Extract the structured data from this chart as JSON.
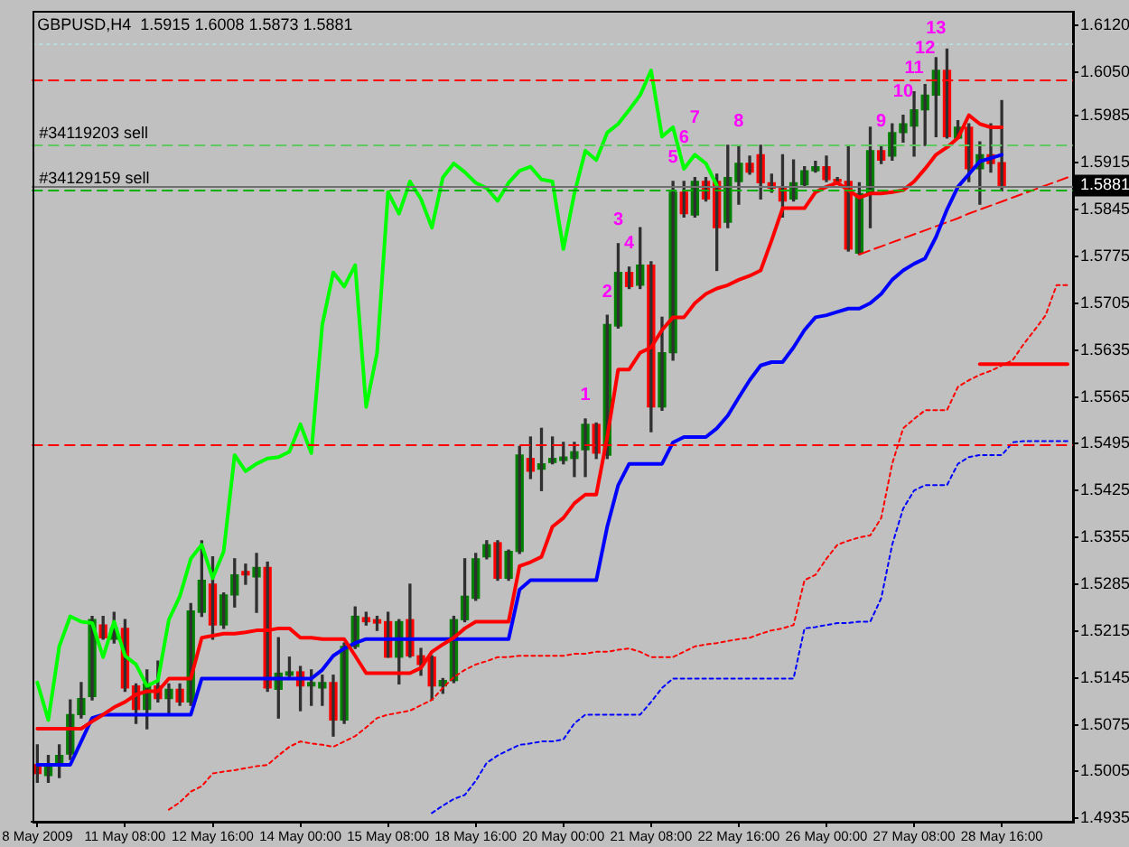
{
  "chart_data": {
    "type": "candlestick",
    "title": "GBPUSD,H4  1.5915 1.6008 1.5873 1.5881",
    "categories": [
      "8 May 2009",
      null,
      null,
      null,
      null,
      null,
      null,
      null,
      "11 May 08:00",
      null,
      null,
      null,
      null,
      null,
      null,
      null,
      "12 May 16:00",
      null,
      null,
      null,
      null,
      null,
      null,
      null,
      "14 May 00:00",
      null,
      null,
      null,
      null,
      null,
      null,
      null,
      "15 May 08:00",
      null,
      null,
      null,
      null,
      null,
      null,
      null,
      "18 May 16:00",
      null,
      null,
      null,
      null,
      null,
      null,
      null,
      "20 May 00:00",
      null,
      null,
      null,
      null,
      null,
      null,
      null,
      "21 May 08:00",
      null,
      null,
      null,
      null,
      null,
      null,
      null,
      "22 May 16:00",
      null,
      null,
      null,
      null,
      null,
      null,
      null,
      "26 May 00:00",
      null,
      null,
      null,
      null,
      null,
      null,
      null,
      "27 May 08:00",
      null,
      null,
      null,
      null,
      null,
      null,
      null,
      "28 May 16:00",
      null,
      null,
      null,
      null,
      null,
      null
    ],
    "ohlc": [
      [
        1.5015,
        1.5045,
        1.4989,
        1.5002
      ],
      [
        1.4999,
        1.5029,
        1.4989,
        1.5015
      ],
      [
        1.5015,
        1.5045,
        1.4996,
        1.5029
      ],
      [
        1.5031,
        1.5112,
        1.5023,
        1.509
      ],
      [
        1.509,
        1.5138,
        1.5085,
        1.5114
      ],
      [
        1.5117,
        1.5237,
        1.5112,
        1.5232
      ],
      [
        1.5224,
        1.5237,
        1.5203,
        1.5205
      ],
      [
        1.5203,
        1.5243,
        1.5197,
        1.5219
      ],
      [
        1.5219,
        1.5232,
        1.5125,
        1.513
      ],
      [
        1.5133,
        1.5136,
        1.5077,
        1.5098
      ],
      [
        1.5098,
        1.5157,
        1.5069,
        1.5136
      ],
      [
        1.5133,
        1.517,
        1.5109,
        1.5114
      ],
      [
        1.5114,
        1.5136,
        1.509,
        1.5128
      ],
      [
        1.5128,
        1.5136,
        1.5104,
        1.5109
      ],
      [
        1.5109,
        1.5256,
        1.5104,
        1.5245
      ],
      [
        1.5243,
        1.535,
        1.5237,
        1.5291
      ],
      [
        1.5285,
        1.5326,
        1.5203,
        1.5224
      ],
      [
        1.5224,
        1.5272,
        1.5219,
        1.5269
      ],
      [
        1.5269,
        1.5323,
        1.5251,
        1.5299
      ],
      [
        1.5304,
        1.5315,
        1.5285,
        1.5299
      ],
      [
        1.5296,
        1.5331,
        1.5243,
        1.531
      ],
      [
        1.531,
        1.5318,
        1.5125,
        1.513
      ],
      [
        1.5128,
        1.5205,
        1.5085,
        1.5152
      ],
      [
        1.5149,
        1.5176,
        1.5144,
        1.5154
      ],
      [
        1.5154,
        1.5162,
        1.5096,
        1.5133
      ],
      [
        1.5133,
        1.5157,
        1.5104,
        1.5138
      ],
      [
        1.513,
        1.5149,
        1.5104,
        1.5138
      ],
      [
        1.5138,
        1.5149,
        1.5058,
        1.5082
      ],
      [
        1.5082,
        1.5197,
        1.5077,
        1.5192
      ],
      [
        1.5192,
        1.5251,
        1.5189,
        1.5237
      ],
      [
        1.5235,
        1.5243,
        1.5224,
        1.5229
      ],
      [
        1.5232,
        1.5237,
        1.5216,
        1.5227
      ],
      [
        1.5229,
        1.5243,
        1.5176,
        1.5176
      ],
      [
        1.5176,
        1.5232,
        1.5136,
        1.5229
      ],
      [
        1.5232,
        1.5285,
        1.5176,
        1.5178
      ],
      [
        1.5178,
        1.5189,
        1.5149,
        1.5165
      ],
      [
        1.5176,
        1.5178,
        1.5112,
        1.5133
      ],
      [
        1.5133,
        1.5144,
        1.5122,
        1.5141
      ],
      [
        1.5141,
        1.5237,
        1.5138,
        1.5232
      ],
      [
        1.5232,
        1.5323,
        1.5229,
        1.5267
      ],
      [
        1.5264,
        1.5331,
        1.5261,
        1.5323
      ],
      [
        1.5326,
        1.535,
        1.5323,
        1.5344
      ],
      [
        1.5347,
        1.535,
        1.5291,
        1.5294
      ],
      [
        1.5294,
        1.5336,
        1.5291,
        1.5334
      ],
      [
        1.5334,
        1.5491,
        1.5331,
        1.5478
      ],
      [
        1.5473,
        1.5505,
        1.5443,
        1.5454
      ],
      [
        1.5457,
        1.5518,
        1.5425,
        1.5465
      ],
      [
        1.5467,
        1.5505,
        1.5465,
        1.5473
      ],
      [
        1.547,
        1.5497,
        1.5465,
        1.5475
      ],
      [
        1.5473,
        1.5497,
        1.5446,
        1.5483
      ],
      [
        1.5486,
        1.5532,
        1.5446,
        1.5524
      ],
      [
        1.5524,
        1.5526,
        1.5473,
        1.5481
      ],
      [
        1.5478,
        1.5687,
        1.5473,
        1.5673
      ],
      [
        1.5671,
        1.5794,
        1.5668,
        1.5751
      ],
      [
        1.5751,
        1.5759,
        1.5727,
        1.573
      ],
      [
        1.5732,
        1.5818,
        1.5727,
        1.5762
      ],
      [
        1.5762,
        1.5767,
        1.5513,
        1.555
      ],
      [
        1.555,
        1.5684,
        1.5545,
        1.5631
      ],
      [
        1.5631,
        1.5887,
        1.562,
        1.5871
      ],
      [
        1.5871,
        1.5887,
        1.5834,
        1.5839
      ],
      [
        1.5837,
        1.5893,
        1.5834,
        1.5887
      ],
      [
        1.5887,
        1.5893,
        1.5858,
        1.5861
      ],
      [
        1.5887,
        1.5898,
        1.5754,
        1.5818
      ],
      [
        1.5826,
        1.5941,
        1.5818,
        1.5893
      ],
      [
        1.5887,
        1.5941,
        1.5853,
        1.5914
      ],
      [
        1.5914,
        1.5925,
        1.5898,
        1.5901
      ],
      [
        1.5927,
        1.5941,
        1.5861,
        1.5885
      ],
      [
        1.5885,
        1.5898,
        1.5871,
        1.5877
      ],
      [
        1.5879,
        1.5927,
        1.5834,
        1.5858
      ],
      [
        1.5861,
        1.5919,
        1.5858,
        1.5885
      ],
      [
        1.5882,
        1.5909,
        1.5879,
        1.5903
      ],
      [
        1.5903,
        1.5917,
        1.5901,
        1.5909
      ],
      [
        1.5909,
        1.5925,
        1.5887,
        1.589
      ],
      [
        1.589,
        1.5893,
        1.5885,
        1.5887
      ],
      [
        1.5887,
        1.5941,
        1.5783,
        1.5786
      ],
      [
        1.578,
        1.5885,
        1.5778,
        1.5869
      ],
      [
        1.5869,
        1.5968,
        1.5818,
        1.5933
      ],
      [
        1.5933,
        1.5941,
        1.5914,
        1.5919
      ],
      [
        1.5925,
        1.5973,
        1.5919,
        1.596
      ],
      [
        1.596,
        1.5986,
        1.5946,
        1.5973
      ],
      [
        1.597,
        1.6021,
        1.5925,
        1.5994
      ],
      [
        1.5994,
        1.6032,
        1.5941,
        1.6016
      ],
      [
        1.6016,
        1.6072,
        1.5954,
        1.6053
      ],
      [
        1.6053,
        1.6085,
        1.5952,
        1.5954
      ],
      [
        1.5952,
        1.5978,
        1.5952,
        1.5968
      ],
      [
        1.5968,
        1.5973,
        1.5887,
        1.5906
      ],
      [
        1.5906,
        1.5946,
        1.5853,
        1.5927
      ],
      [
        1.5927,
        1.5973,
        1.5901,
        1.5914
      ],
      [
        1.5915,
        1.6008,
        1.5873,
        1.5881
      ],
      null,
      null,
      null,
      null,
      null,
      null
    ],
    "colors": [
      "#ff0000",
      "#008000",
      "#008000",
      "#008000",
      "#008000",
      "#008000",
      "#ff0000",
      "#008000",
      "#ff0000",
      "#ff0000",
      "#008000",
      "#ff0000",
      "#008000",
      "#ff0000",
      "#008000",
      "#008000",
      "#ff0000",
      "#008000",
      "#008000",
      "#ff0000",
      "#008000",
      "#ff0000",
      "#008000",
      "#008000",
      "#ff0000",
      "#008000",
      "#008000",
      "#ff0000",
      "#008000",
      "#008000",
      "#ff0000",
      "#ff0000",
      "#ff0000",
      "#008000",
      "#ff0000",
      "#ff0000",
      "#ff0000",
      "#008000",
      "#008000",
      "#008000",
      "#008000",
      "#008000",
      "#ff0000",
      "#008000",
      "#008000",
      "#ff0000",
      "#008000",
      "#008000",
      "#008000",
      "#008000",
      "#008000",
      "#ff0000",
      "#008000",
      "#008000",
      "#ff0000",
      "#008000",
      "#ff0000",
      "#008000",
      "#008000",
      "#ff0000",
      "#008000",
      "#ff0000",
      "#ff0000",
      "#008000",
      "#008000",
      "#ff0000",
      "#ff0000",
      "#ff0000",
      "#ff0000",
      "#008000",
      "#008000",
      "#008000",
      "#ff0000",
      "#ff0000",
      "#ff0000",
      "#008000",
      "#008000",
      "#ff0000",
      "#008000",
      "#008000",
      "#008000",
      "#008000",
      "#008000",
      "#ff0000",
      "#008000",
      "#ff0000",
      "#008000",
      "#ff0000",
      "#ff0000",
      null,
      null,
      null,
      null,
      null,
      null
    ],
    "value_labels": [
      null,
      null,
      null,
      null,
      null,
      null,
      null,
      null,
      null,
      null,
      null,
      null,
      null,
      null,
      null,
      null,
      null,
      null,
      null,
      null,
      null,
      null,
      null,
      null,
      null,
      null,
      null,
      null,
      null,
      null,
      null,
      null,
      null,
      null,
      null,
      null,
      null,
      null,
      null,
      null,
      null,
      null,
      null,
      null,
      null,
      null,
      null,
      null,
      null,
      null,
      "1",
      null,
      "2",
      "3",
      "4",
      null,
      null,
      null,
      "5",
      "6",
      "7",
      null,
      null,
      null,
      "8",
      null,
      null,
      null,
      null,
      null,
      null,
      null,
      null,
      null,
      null,
      null,
      null,
      "9",
      null,
      "10",
      "11",
      "12",
      "13",
      null,
      null,
      null,
      null,
      null,
      null,
      null,
      null,
      null,
      null,
      null,
      null
    ],
    "series": [
      {
        "type": "line",
        "color": "#ff0000",
        "values": [
          1.5069,
          1.5069,
          1.5069,
          1.5069,
          1.5069,
          1.508,
          1.509,
          1.5101,
          1.5109,
          1.512,
          1.5125,
          1.5125,
          1.5144,
          1.5144,
          1.5144,
          1.5205,
          1.5208,
          1.5211,
          1.5211,
          1.5213,
          1.5216,
          1.5216,
          1.5219,
          1.5219,
          1.5205,
          1.5205,
          1.5203,
          1.5203,
          1.5203,
          1.5178,
          1.5152,
          1.5152,
          1.5152,
          1.5152,
          1.5152,
          1.516,
          1.5184,
          1.5195,
          1.5205,
          1.5219,
          1.5229,
          1.5229,
          1.5229,
          1.5229,
          1.5312,
          1.5318,
          1.5326,
          1.5371,
          1.5384,
          1.5406,
          1.5419,
          1.5419,
          1.5505,
          1.5606,
          1.5606,
          1.5631,
          1.5639,
          1.5665,
          1.5684,
          1.5684,
          1.5705,
          1.5719,
          1.5727,
          1.5732,
          1.574,
          1.5746,
          1.5754,
          1.5799,
          1.5847,
          1.5847,
          1.5847,
          1.5871,
          1.5879,
          1.5885,
          1.5874,
          1.5863,
          1.5869,
          1.5869,
          1.5871,
          1.5874,
          1.5887,
          1.5906,
          1.5927,
          1.5938,
          1.5952,
          1.5986,
          1.5973,
          1.5968,
          1.5968,
          null,
          null,
          null,
          null,
          null,
          null
        ]
      },
      {
        "type": "line",
        "color": "#0000ff",
        "values": [
          1.5015,
          1.5015,
          1.5015,
          1.5015,
          1.505,
          1.5085,
          1.509,
          1.509,
          1.509,
          1.509,
          1.509,
          1.509,
          1.509,
          1.509,
          1.509,
          1.5144,
          1.5144,
          1.5144,
          1.5144,
          1.5144,
          1.5144,
          1.5144,
          1.5144,
          1.5144,
          1.5144,
          1.5144,
          1.5157,
          1.5178,
          1.5189,
          1.5197,
          1.5203,
          1.5203,
          1.5203,
          1.5203,
          1.5203,
          1.5203,
          1.5203,
          1.5203,
          1.5203,
          1.5203,
          1.5203,
          1.5203,
          1.5203,
          1.5203,
          1.5277,
          1.5291,
          1.5291,
          1.5291,
          1.5291,
          1.5291,
          1.5291,
          1.5291,
          1.5371,
          1.5433,
          1.5465,
          1.5465,
          1.5465,
          1.5465,
          1.5497,
          1.5505,
          1.5505,
          1.5505,
          1.5518,
          1.5537,
          1.5564,
          1.559,
          1.5612,
          1.5617,
          1.5617,
          1.5639,
          1.5665,
          1.5684,
          1.5687,
          1.5692,
          1.5697,
          1.5697,
          1.5705,
          1.5719,
          1.574,
          1.5754,
          1.5764,
          1.5772,
          1.5804,
          1.5845,
          1.5879,
          1.5898,
          1.5917,
          1.5922,
          1.5927,
          null,
          null,
          null,
          null,
          null,
          null
        ]
      },
      {
        "type": "line",
        "color": "#00ff00",
        "values": [
          1.5138,
          1.5082,
          1.5192,
          1.5237,
          1.5229,
          1.5227,
          1.5176,
          1.5229,
          1.5178,
          1.5165,
          1.5133,
          1.5141,
          1.5232,
          1.5267,
          1.5323,
          1.5344,
          1.5294,
          1.5334,
          1.5478,
          1.5454,
          1.5465,
          1.5473,
          1.5475,
          1.5483,
          1.5524,
          1.5481,
          1.5673,
          1.5751,
          1.573,
          1.5762,
          1.555,
          1.5631,
          1.5871,
          1.5839,
          1.5887,
          1.5861,
          1.5818,
          1.5893,
          1.5914,
          1.5901,
          1.5885,
          1.5877,
          1.5858,
          1.5885,
          1.5903,
          1.5909,
          1.589,
          1.5887,
          1.5786,
          1.5869,
          1.5933,
          1.5919,
          1.596,
          1.5973,
          1.5994,
          1.6016,
          1.6053,
          1.5954,
          1.5968,
          1.5906,
          1.5927,
          1.5914,
          1.5881,
          null,
          null,
          null,
          null,
          null,
          null,
          null,
          null,
          null,
          null,
          null,
          null,
          null,
          null,
          null,
          null,
          null,
          null,
          null,
          null,
          null,
          null,
          null,
          null,
          null,
          null,
          null,
          null,
          null,
          null,
          null,
          null
        ]
      },
      {
        "type": "line",
        "color": "#ff0000",
        "line_style": "dotted",
        "values": [
          null,
          null,
          null,
          null,
          null,
          null,
          null,
          null,
          null,
          null,
          null,
          null,
          1.4948,
          1.4959,
          1.4975,
          1.4983,
          1.5002,
          1.5005,
          1.5007,
          1.501,
          1.5013,
          1.5015,
          1.5029,
          1.5042,
          1.505,
          1.5047,
          1.5045,
          1.5042,
          1.505,
          1.5058,
          1.5071,
          1.5085,
          1.509,
          1.5093,
          1.5096,
          1.5104,
          1.5112,
          1.513,
          1.5146,
          1.5157,
          1.5165,
          1.517,
          1.5176,
          1.5176,
          1.5178,
          1.5178,
          1.5178,
          1.5178,
          1.5178,
          1.5181,
          1.5181,
          1.5184,
          1.5184,
          1.5187,
          1.5189,
          1.5184,
          1.5176,
          1.5176,
          1.5176,
          1.5184,
          1.5192,
          1.5195,
          1.5197,
          1.52,
          1.5203,
          1.5205,
          1.5211,
          1.5216,
          1.5219,
          1.5224,
          1.5291,
          1.5299,
          1.5323,
          1.5344,
          1.535,
          1.5355,
          1.5358,
          1.5384,
          1.5465,
          1.5518,
          1.5532,
          1.5545,
          1.5545,
          1.5545,
          1.558,
          1.559,
          1.5598,
          1.5604,
          1.5612,
          1.562,
          1.5644,
          1.5665,
          1.5687,
          1.5732,
          1.5732
        ]
      },
      {
        "type": "line",
        "color": "#0000ff",
        "line_style": "dotted",
        "values": [
          null,
          null,
          null,
          null,
          null,
          null,
          null,
          null,
          null,
          null,
          null,
          null,
          null,
          null,
          null,
          null,
          null,
          null,
          null,
          null,
          null,
          null,
          null,
          null,
          null,
          null,
          null,
          null,
          null,
          null,
          null,
          null,
          null,
          null,
          null,
          null,
          1.4943,
          1.4954,
          1.4964,
          1.497,
          1.4991,
          1.5018,
          1.5029,
          1.5037,
          1.5045,
          1.5047,
          1.505,
          1.505,
          1.5053,
          1.5077,
          1.509,
          1.509,
          1.509,
          1.509,
          1.509,
          1.509,
          1.5109,
          1.513,
          1.5144,
          1.5144,
          1.5144,
          1.5144,
          1.5144,
          1.5144,
          1.5144,
          1.5144,
          1.5144,
          1.5144,
          1.5144,
          1.5144,
          1.5219,
          1.5221,
          1.5224,
          1.5227,
          1.5227,
          1.5229,
          1.5229,
          1.5264,
          1.5344,
          1.5398,
          1.5425,
          1.5433,
          1.5433,
          1.5433,
          1.5465,
          1.5475,
          1.5478,
          1.5478,
          1.5478,
          1.5497,
          1.5499,
          1.5499,
          1.5499,
          1.5499,
          1.5499
        ]
      },
      {
        "type": "line",
        "color": "#ff0000",
        "values": [
          null,
          null,
          null,
          null,
          null,
          null,
          null,
          null,
          null,
          null,
          null,
          null,
          null,
          null,
          null,
          null,
          null,
          null,
          null,
          null,
          null,
          null,
          null,
          null,
          null,
          null,
          null,
          null,
          null,
          null,
          null,
          null,
          null,
          null,
          null,
          null,
          null,
          null,
          null,
          null,
          null,
          null,
          null,
          null,
          null,
          null,
          null,
          null,
          null,
          null,
          null,
          null,
          null,
          null,
          null,
          null,
          null,
          null,
          null,
          null,
          null,
          null,
          null,
          null,
          null,
          null,
          null,
          null,
          null,
          null,
          null,
          null,
          null,
          null,
          null,
          null,
          null,
          null,
          null,
          null,
          null,
          null,
          null,
          null,
          null,
          null,
          1.5614,
          1.5614,
          1.5614,
          1.5614,
          1.5614,
          1.5614,
          1.5614,
          1.5614,
          1.5614
        ]
      },
      {
        "type": "line",
        "color": "#ff0000",
        "line_style": "dashed",
        "values": [
          null,
          null,
          null,
          null,
          null,
          null,
          null,
          null,
          null,
          null,
          null,
          null,
          null,
          null,
          null,
          null,
          null,
          null,
          null,
          null,
          null,
          null,
          null,
          null,
          null,
          null,
          null,
          null,
          null,
          null,
          null,
          null,
          null,
          null,
          null,
          null,
          null,
          null,
          null,
          null,
          null,
          null,
          null,
          null,
          null,
          null,
          null,
          null,
          null,
          null,
          null,
          null,
          null,
          null,
          null,
          null,
          null,
          null,
          null,
          null,
          null,
          null,
          null,
          null,
          null,
          null,
          null,
          null,
          null,
          null,
          null,
          null,
          null,
          null,
          null,
          1.5778,
          1.5784,
          1.579,
          1.5796,
          1.5802,
          1.5808,
          1.5814,
          1.582,
          1.5826,
          1.5832,
          1.5839,
          1.5845,
          1.5851,
          1.5857,
          1.5863,
          1.5869,
          1.5875,
          1.5881,
          1.5887,
          1.5893
        ]
      }
    ],
    "ylim": [
      1.493,
      1.6141
    ],
    "yticks": [
      {
        "value": 1.612,
        "label": "1.6120"
      },
      {
        "value": 1.605,
        "label": "1.6050"
      },
      1.5985,
      1.5915,
      1.5845,
      1.5775,
      1.5705,
      1.5635,
      1.5565,
      1.5495,
      1.5425,
      1.5355,
      1.5285,
      1.5215,
      1.5145,
      1.5075,
      1.5005,
      1.4935
    ],
    "ref_lines": [
      {
        "axis": "y",
        "value": 1.6093,
        "color": "#b8dcdc",
        "line_style": "dotted"
      },
      {
        "axis": "y",
        "value": 1.604,
        "color": "#ff0000",
        "line_style": "dashed"
      },
      {
        "axis": "y",
        "value": 1.5941,
        "label": "#34119203 sell",
        "color": "#60c860",
        "line_style": "dashed"
      },
      {
        "axis": "y",
        "value": 1.5876,
        "label": "#34129159 sell",
        "color": "#00b000",
        "line_style": "dashed"
      },
      {
        "axis": "y",
        "value": 1.5881,
        "label": "1.5881",
        "color": "#707070",
        "line_style": "solid"
      },
      {
        "axis": "y",
        "value": 1.5495,
        "color": "#ff0000",
        "line_style": "dashed"
      }
    ],
    "marker": "none"
  }
}
